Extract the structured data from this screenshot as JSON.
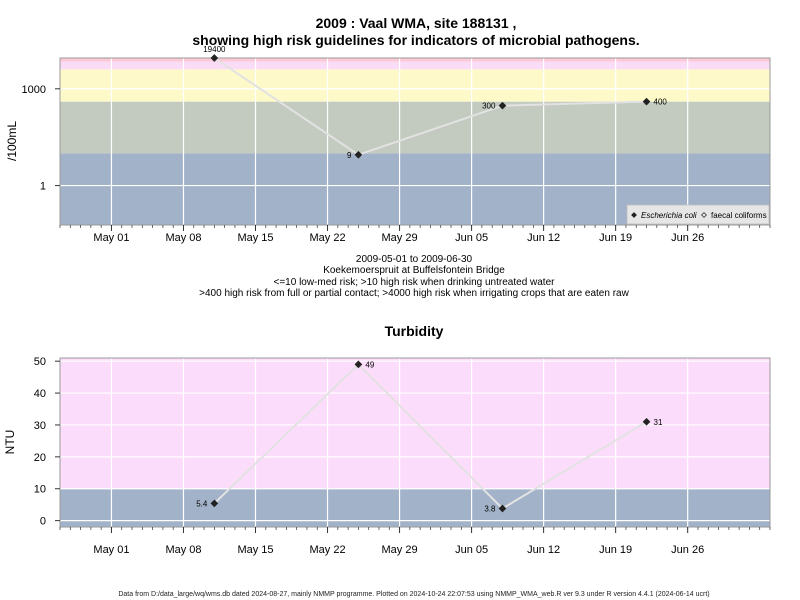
{
  "chart_data": [
    {
      "type": "line",
      "title": "2009 : Vaal WMA, site 188131 ,",
      "subtitle": "showing high risk guidelines for indicators of microbial pathogens.",
      "xlabel": "",
      "ylabel": "/100mL",
      "y_scale": "log",
      "ylim": [
        0.06,
        9000
      ],
      "xlim": [
        "2009-04-26",
        "2009-07-04"
      ],
      "x_ticks": [
        {
          "date": "2009-05-01",
          "label": "May 01"
        },
        {
          "date": "2009-05-08",
          "label": "May 08"
        },
        {
          "date": "2009-05-15",
          "label": "May 15"
        },
        {
          "date": "2009-05-22",
          "label": "May 22"
        },
        {
          "date": "2009-05-29",
          "label": "May 29"
        },
        {
          "date": "2009-06-05",
          "label": "Jun 05"
        },
        {
          "date": "2009-06-12",
          "label": "Jun 12"
        },
        {
          "date": "2009-06-19",
          "label": "Jun 19"
        },
        {
          "date": "2009-06-26",
          "label": "Jun 26"
        }
      ],
      "y_ticks": [
        {
          "value": 1,
          "label": "1"
        },
        {
          "value": 1000,
          "label": "1000"
        }
      ],
      "bands": [
        {
          "from": 0.06,
          "to": 10,
          "color": "#a2b2c9"
        },
        {
          "from": 10,
          "to": 400,
          "color": "#c3cbc0"
        },
        {
          "from": 400,
          "to": 4000,
          "color": "#fdf9c9"
        },
        {
          "from": 4000,
          "to": 7000,
          "color": "#fbdcf6"
        },
        {
          "from": 7000,
          "to": 9000,
          "color": "#fcc9d6"
        }
      ],
      "series": [
        {
          "name": "Escherichia coli",
          "marker": "filled-diamond",
          "points": [
            {
              "x": "2009-05-11",
              "y": 19400,
              "label": "19400"
            },
            {
              "x": "2009-05-25",
              "y": 9,
              "label": "9"
            },
            {
              "x": "2009-06-08",
              "y": 300,
              "label": "300"
            },
            {
              "x": "2009-06-22",
              "y": 400,
              "label": "400"
            }
          ]
        },
        {
          "name": "faecal coliforms",
          "marker": "open-diamond",
          "points": []
        }
      ],
      "legend": {
        "position": "bottom-right"
      },
      "grid": true
    },
    {
      "type": "line",
      "title": "Turbidity",
      "xlabel": "",
      "ylabel": "NTU",
      "y_scale": "linear",
      "ylim": [
        -2,
        51
      ],
      "xlim": [
        "2009-04-26",
        "2009-07-04"
      ],
      "x_ticks": [
        {
          "date": "2009-05-01",
          "label": "May 01"
        },
        {
          "date": "2009-05-08",
          "label": "May 08"
        },
        {
          "date": "2009-05-15",
          "label": "May 15"
        },
        {
          "date": "2009-05-22",
          "label": "May 22"
        },
        {
          "date": "2009-05-29",
          "label": "May 29"
        },
        {
          "date": "2009-06-05",
          "label": "Jun 05"
        },
        {
          "date": "2009-06-12",
          "label": "Jun 12"
        },
        {
          "date": "2009-06-19",
          "label": "Jun 19"
        },
        {
          "date": "2009-06-26",
          "label": "Jun 26"
        }
      ],
      "y_ticks": [
        {
          "value": 0,
          "label": "0"
        },
        {
          "value": 10,
          "label": "10"
        },
        {
          "value": 20,
          "label": "20"
        },
        {
          "value": 30,
          "label": "30"
        },
        {
          "value": 40,
          "label": "40"
        },
        {
          "value": 50,
          "label": "50"
        }
      ],
      "bands": [
        {
          "from": -2,
          "to": 10,
          "color": "#a2b2c9"
        },
        {
          "from": 10,
          "to": 51,
          "color": "#fcdcfb"
        }
      ],
      "series": [
        {
          "name": "",
          "marker": "filled-diamond",
          "points": [
            {
              "x": "2009-05-11",
              "y": 5.4,
              "label": "5.4"
            },
            {
              "x": "2009-05-25",
              "y": 49,
              "label": "49"
            },
            {
              "x": "2009-06-08",
              "y": 3.8,
              "label": "3.8"
            },
            {
              "x": "2009-06-22",
              "y": 31,
              "label": "31"
            }
          ]
        }
      ],
      "grid": true
    }
  ],
  "captions": [
    "2009-05-01 to 2009-06-30",
    "Koekemoerspruit at Buffelsfontein Bridge",
    "<=10 low-med risk; >10 high risk when drinking untreated water",
    ">400 high risk from full or partial contact; >4000 high risk when irrigating crops that are eaten raw"
  ],
  "footer": "Data from D:/data_large/wq/wms.db dated 2024-08-27, mainly NMMP programme. Plotted on 2024-10-24 22:07:53 using NMMP_WMA_web.R ver 9.3 under R version 4.4.1 (2024-06-14 ucrt)"
}
